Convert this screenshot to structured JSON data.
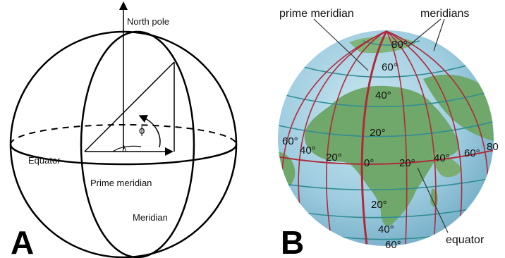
{
  "panel_a": {
    "letter": "A",
    "north_pole": "North pole",
    "equator": "Equator",
    "prime_meridian": "Prime meridian",
    "meridian": "Meridian",
    "phi": "ϕ",
    "lambda": "λ"
  },
  "panel_b": {
    "letter": "B",
    "prime_meridian": "prime meridian",
    "meridians": "meridians",
    "equator": "equator",
    "lat_labels": [
      "80°",
      "60°",
      "40°",
      "20°",
      "0°",
      "20°",
      "40°",
      "60°"
    ],
    "lon_labels": [
      "60°",
      "40°",
      "20°",
      "20°",
      "40°",
      "60°",
      "80"
    ],
    "colors": {
      "ocean": "#9fcde0",
      "land": "#6fa86a",
      "meridian_line": "#b02a3a",
      "parallel_line": "#2f8d92"
    }
  }
}
